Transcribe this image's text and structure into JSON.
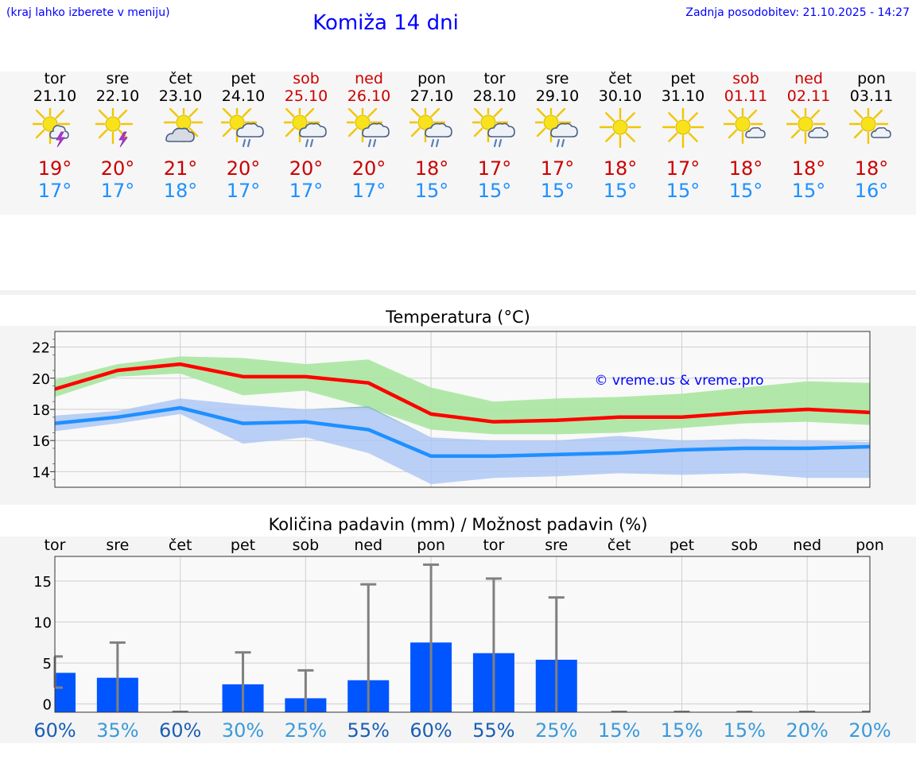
{
  "header": {
    "hint": "(kraj lahko izberete v meniju)",
    "title": "Komiža 14 dni",
    "updated": "Zadnja posodobitev: 21.10.2025 - 14:27"
  },
  "days": [
    {
      "name": "tor",
      "date": "21.10",
      "icon": "sun-cloud-thunder-icon",
      "tmax": "19°",
      "tmin": "17°",
      "weekend": false
    },
    {
      "name": "sre",
      "date": "22.10",
      "icon": "sun-thunder-icon",
      "tmax": "20°",
      "tmin": "17°",
      "weekend": false
    },
    {
      "name": "čet",
      "date": "23.10",
      "icon": "sun-cloud-icon",
      "tmax": "21°",
      "tmin": "18°",
      "weekend": false
    },
    {
      "name": "pet",
      "date": "24.10",
      "icon": "sun-cloud-rain-icon",
      "tmax": "20°",
      "tmin": "17°",
      "weekend": false
    },
    {
      "name": "sob",
      "date": "25.10",
      "icon": "sun-cloud-rain-icon",
      "tmax": "20°",
      "tmin": "17°",
      "weekend": true
    },
    {
      "name": "ned",
      "date": "26.10",
      "icon": "sun-cloud-rain-icon",
      "tmax": "20°",
      "tmin": "17°",
      "weekend": true
    },
    {
      "name": "pon",
      "date": "27.10",
      "icon": "sun-cloud-rain-icon",
      "tmax": "18°",
      "tmin": "15°",
      "weekend": false
    },
    {
      "name": "tor",
      "date": "28.10",
      "icon": "sun-cloud-rain-icon",
      "tmax": "17°",
      "tmin": "15°",
      "weekend": false
    },
    {
      "name": "sre",
      "date": "29.10",
      "icon": "sun-cloud-rain-icon",
      "tmax": "17°",
      "tmin": "15°",
      "weekend": false
    },
    {
      "name": "čet",
      "date": "30.10",
      "icon": "sun-icon",
      "tmax": "18°",
      "tmin": "15°",
      "weekend": false
    },
    {
      "name": "pet",
      "date": "31.10",
      "icon": "sun-icon",
      "tmax": "17°",
      "tmin": "15°",
      "weekend": false
    },
    {
      "name": "sob",
      "date": "01.11",
      "icon": "sun-small-cloud-icon",
      "tmax": "18°",
      "tmin": "15°",
      "weekend": true
    },
    {
      "name": "ned",
      "date": "02.11",
      "icon": "sun-small-cloud-icon",
      "tmax": "18°",
      "tmin": "15°",
      "weekend": true
    },
    {
      "name": "pon",
      "date": "03.11",
      "icon": "sun-small-cloud-icon",
      "tmax": "18°",
      "tmin": "16°",
      "weekend": false
    }
  ],
  "colors": {
    "link_blue": "#0000ff",
    "weekend_red": "#cc0000",
    "max_line": "#ff0000",
    "min_line": "#1e90ff",
    "max_band": "#a8e6a0",
    "min_band": "#a9c4f5",
    "bar": "#0055ff",
    "error": "#808080",
    "pct_dark": "#1a5fb4",
    "pct_light": "#3a9ad9"
  },
  "chart_data": [
    {
      "type": "line",
      "title": "Temperatura (°C)",
      "watermark": "© vreme.us & vreme.pro",
      "x": [
        "21.10",
        "22.10",
        "23.10",
        "24.10",
        "25.10",
        "26.10",
        "27.10",
        "28.10",
        "29.10",
        "30.10",
        "31.10",
        "01.11",
        "02.11",
        "03.11"
      ],
      "ylim": [
        13,
        23
      ],
      "yticks": [
        14,
        16,
        18,
        20,
        22
      ],
      "grid": true,
      "series": [
        {
          "values": [
            19.3,
            20.5,
            20.9,
            20.1,
            20.1,
            19.7,
            17.7,
            17.2,
            17.3,
            17.5,
            17.5,
            17.8,
            18.0,
            17.8
          ],
          "band_low": [
            18.8,
            20.1,
            20.3,
            18.9,
            19.2,
            18.1,
            16.7,
            16.4,
            16.4,
            16.5,
            16.8,
            17.1,
            17.2,
            17.0
          ],
          "band_high": [
            19.9,
            20.9,
            21.4,
            21.3,
            20.9,
            21.2,
            19.4,
            18.5,
            18.7,
            18.8,
            19.0,
            19.4,
            19.8,
            19.7
          ]
        },
        {
          "values": [
            17.1,
            17.5,
            18.1,
            17.1,
            17.2,
            16.7,
            15.0,
            15.0,
            15.1,
            15.2,
            15.4,
            15.5,
            15.5,
            15.6
          ],
          "band_low": [
            16.6,
            17.1,
            17.7,
            15.8,
            16.2,
            15.2,
            13.2,
            13.6,
            13.7,
            13.9,
            13.8,
            13.9,
            13.6,
            13.6
          ],
          "band_high": [
            17.6,
            17.9,
            18.7,
            18.3,
            18.0,
            18.2,
            16.2,
            16.0,
            16.0,
            16.3,
            16.0,
            16.1,
            16.0,
            15.9
          ]
        }
      ]
    },
    {
      "type": "bar",
      "title": "Količina padavin (mm) / Možnost padavin (%)",
      "categories": [
        "tor",
        "sre",
        "čet",
        "pet",
        "sob",
        "ned",
        "pon",
        "tor",
        "sre",
        "čet",
        "pet",
        "sob",
        "ned",
        "pon"
      ],
      "values": [
        3.8,
        3.2,
        0,
        2.4,
        0.7,
        2.9,
        7.5,
        6.2,
        5.4,
        0,
        0,
        0,
        0,
        0
      ],
      "error_high": [
        5.8,
        7.5,
        0,
        6.3,
        4.1,
        14.6,
        17.0,
        15.3,
        13.0,
        0,
        0,
        0,
        0,
        0
      ],
      "error_low": [
        2.0,
        0,
        0,
        0,
        0,
        0,
        0,
        0,
        0,
        0,
        0,
        0,
        0,
        0
      ],
      "probability": [
        "60%",
        "35%",
        "60%",
        "30%",
        "25%",
        "55%",
        "60%",
        "55%",
        "25%",
        "15%",
        "15%",
        "15%",
        "20%",
        "20%"
      ],
      "ylim": [
        -1,
        18
      ],
      "yticks": [
        0,
        5,
        10,
        15
      ],
      "grid": true
    }
  ]
}
